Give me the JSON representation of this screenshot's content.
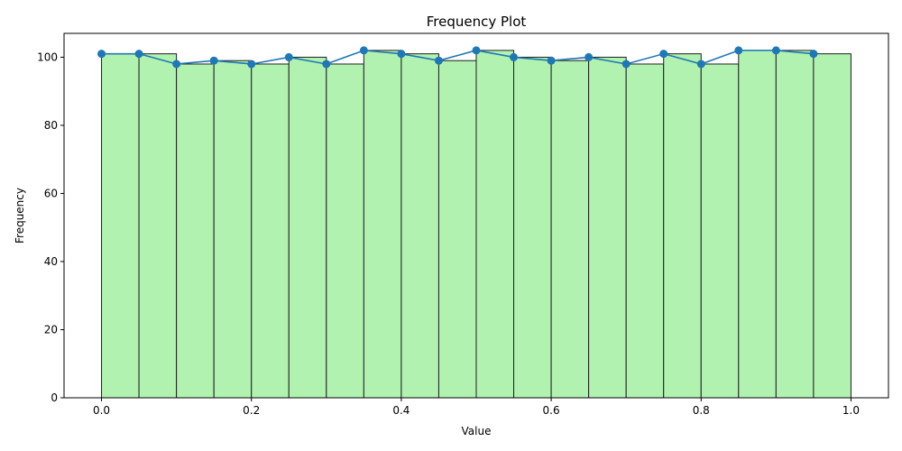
{
  "chart_data": {
    "type": "bar",
    "title": "Frequency Plot",
    "xlabel": "Value",
    "ylabel": "Frequency",
    "xlim": [
      -0.05,
      1.05
    ],
    "ylim": [
      0,
      107
    ],
    "grid": false,
    "bin_edges": [
      0.0,
      0.05,
      0.1,
      0.15,
      0.2,
      0.25,
      0.3,
      0.35,
      0.4,
      0.45,
      0.5,
      0.55,
      0.6,
      0.65,
      0.7,
      0.75,
      0.8,
      0.85,
      0.9,
      0.95,
      1.0
    ],
    "values": [
      101,
      101,
      98,
      99,
      98,
      100,
      98,
      102,
      101,
      99,
      102,
      100,
      99,
      100,
      98,
      101,
      98,
      102,
      102,
      101
    ],
    "line": {
      "x": [
        0.0,
        0.05,
        0.1,
        0.15,
        0.2,
        0.25,
        0.3,
        0.35,
        0.4,
        0.45,
        0.5,
        0.55,
        0.6,
        0.65,
        0.7,
        0.75,
        0.8,
        0.85,
        0.9,
        0.95
      ],
      "y": [
        101,
        101,
        98,
        99,
        98,
        100,
        98,
        102,
        101,
        99,
        102,
        100,
        99,
        100,
        98,
        101,
        98,
        102,
        102,
        101
      ]
    },
    "x_ticks": [
      0.0,
      0.2,
      0.4,
      0.6,
      0.8,
      1.0
    ],
    "x_tick_labels": [
      "0.0",
      "0.2",
      "0.4",
      "0.6",
      "0.8",
      "1.0"
    ],
    "y_ticks": [
      0,
      20,
      40,
      60,
      80,
      100
    ],
    "y_tick_labels": [
      "0",
      "20",
      "40",
      "60",
      "80",
      "100"
    ],
    "colors": {
      "bar_fill": "#b1f2b1",
      "bar_edge": "#1f1f1f",
      "line": "#1f77b4"
    }
  }
}
